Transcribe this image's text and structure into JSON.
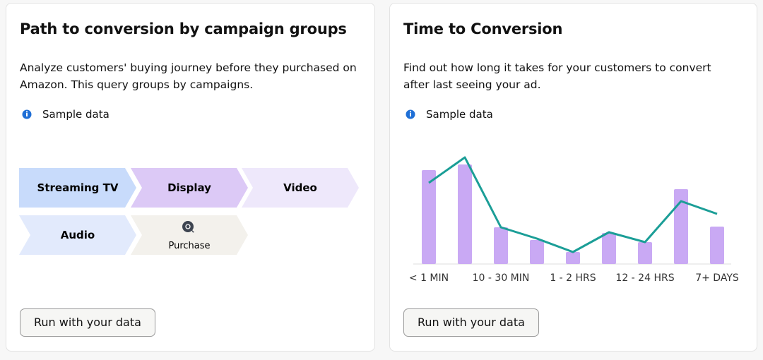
{
  "cards": [
    {
      "title": "Path to conversion by campaign groups",
      "description": "Analyze customers' buying journey before they purchased on Amazon. This query groups by campaigns.",
      "note": "Sample data",
      "steps": [
        "Streaming TV",
        "Display",
        "Video",
        "Audio",
        "Purchase"
      ],
      "button": "Run with your data"
    },
    {
      "title": "Time to Conversion",
      "description": "Find out how long it takes for your customers to convert after last seeing your ad.",
      "note": "Sample data",
      "button": "Run with your data"
    }
  ],
  "chart_data": {
    "type": "bar",
    "categories": [
      "< 1 MIN",
      null,
      "10 - 30 MIN",
      null,
      "1 - 2 HRS",
      null,
      "12 - 24 HRS",
      null,
      "7+ DAYS"
    ],
    "ylim": [
      0,
      160
    ],
    "series": [
      {
        "type": "bar",
        "color": "#c9a9f4",
        "values": [
          133,
          141,
          52,
          34,
          17,
          44,
          31,
          106,
          53
        ]
      },
      {
        "type": "line",
        "color": "#1b9e97",
        "values": [
          115,
          151,
          52,
          36,
          17,
          45,
          31,
          89,
          71
        ]
      }
    ]
  }
}
